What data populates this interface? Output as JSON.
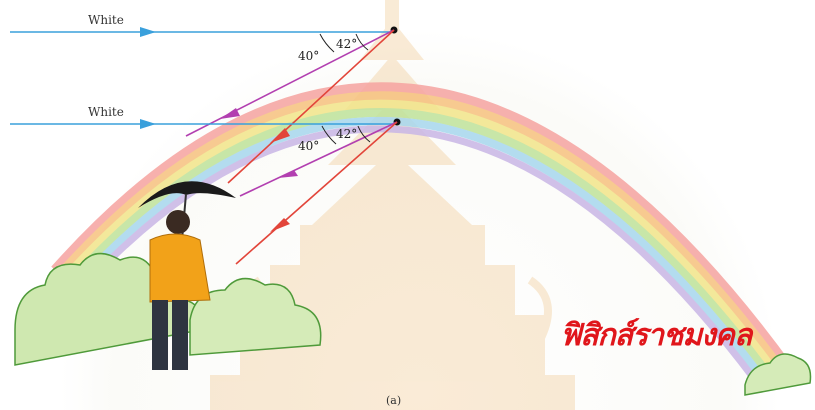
{
  "rays": {
    "upper_label": "White",
    "lower_label": "White"
  },
  "angles": {
    "upper_violet": "40°",
    "upper_red": "42°",
    "lower_violet": "40°",
    "lower_red": "42°"
  },
  "caption": "(a)",
  "watermark": "ฟิสิกส์ราชมงคล",
  "colors": {
    "white_ray": "#3aa0dc",
    "red_ray": "#e2453a",
    "violet_ray": "#b23fb0",
    "watermark": "#e0161b"
  }
}
